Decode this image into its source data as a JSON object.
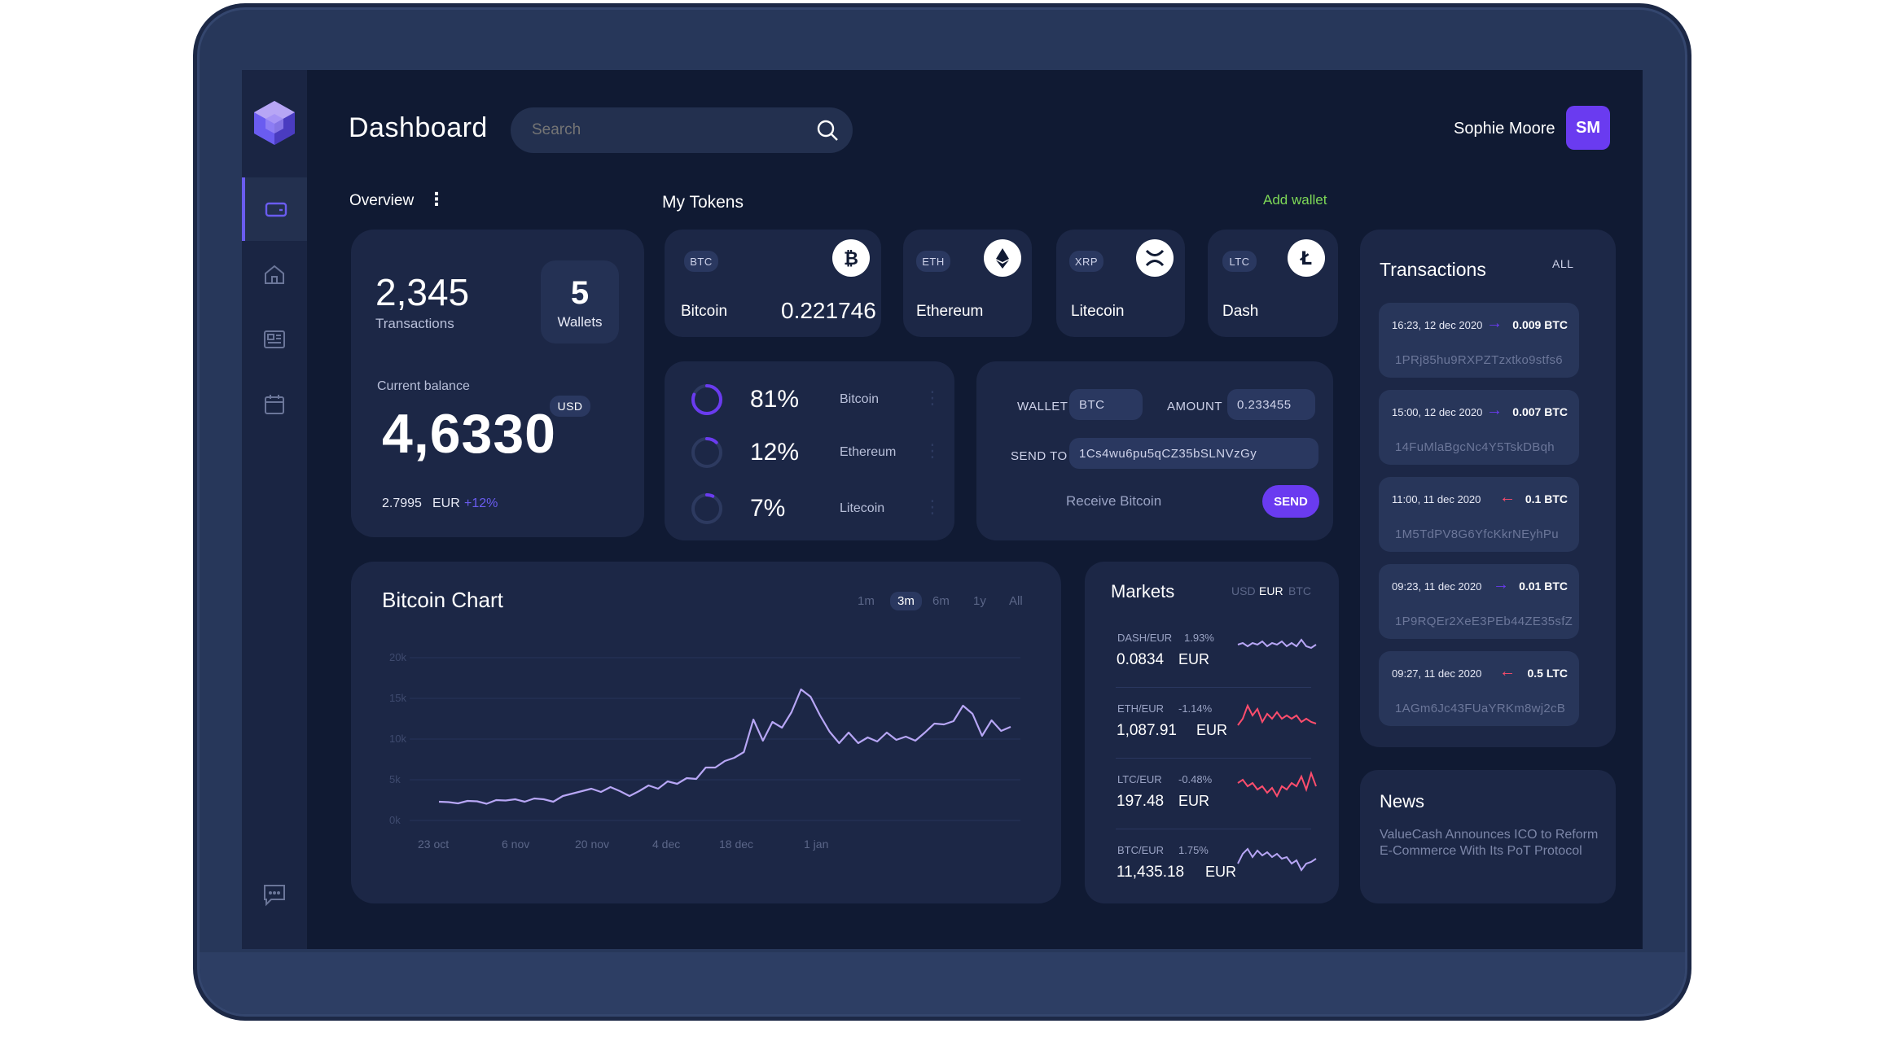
{
  "header": {
    "title": "Dashboard",
    "search_placeholder": "Search",
    "user_name": "Sophie Moore",
    "user_initials": "SM"
  },
  "overview": {
    "label": "Overview",
    "transactions_count": "2,345",
    "transactions_label": "Transactions",
    "wallets_count": "5",
    "wallets_label": "Wallets",
    "balance_label": "Current balance",
    "balance_currency": "USD",
    "balance_value": "4,6330",
    "eur_value": "2.7995",
    "eur_currency": "EUR",
    "change": "+12%"
  },
  "tokens": {
    "label": "My Tokens",
    "add_wallet": "Add wallet",
    "items": [
      {
        "ticker": "BTC",
        "name": "Bitcoin",
        "amount": "0.221746",
        "icon": "bitcoin-icon"
      },
      {
        "ticker": "ETH",
        "name": "Ethereum",
        "amount": "",
        "icon": "ethereum-icon"
      },
      {
        "ticker": "XRP",
        "name": "Litecoin",
        "amount": "",
        "icon": "xrp-icon"
      },
      {
        "ticker": "LTC",
        "name": "Dash",
        "amount": "",
        "icon": "litecoin-icon"
      }
    ]
  },
  "allocation": {
    "items": [
      {
        "percent": "81%",
        "name": "Bitcoin",
        "value": 0.81
      },
      {
        "percent": "12%",
        "name": "Ethereum",
        "value": 0.12
      },
      {
        "percent": "7%",
        "name": "Litecoin",
        "value": 0.07
      }
    ]
  },
  "send": {
    "wallet_label": "WALLET",
    "wallet_value": "BTC",
    "amount_label": "AMOUNT",
    "amount_value": "0.233455",
    "send_to_label": "SEND TO",
    "send_to_value": "1Cs4wu6pu5qCZ35bSLNVzGy",
    "receive_label": "Receive Bitcoin",
    "send_button": "SEND"
  },
  "bitcoin_chart": {
    "title": "Bitcoin Chart",
    "ranges": [
      "1m",
      "3m",
      "6m",
      "1y",
      "All"
    ],
    "active_range": "3m"
  },
  "chart_data": {
    "type": "line",
    "title": "Bitcoin Chart",
    "xlabel": "",
    "ylabel": "",
    "x_ticks": [
      "23 oct",
      "6 nov",
      "20 nov",
      "4 dec",
      "18 dec",
      "1 jan"
    ],
    "y_ticks": [
      "20k",
      "15k",
      "10k",
      "5k",
      "0k"
    ],
    "ylim": [
      0,
      20000
    ],
    "grid": true,
    "series": [
      {
        "values": [
          2300,
          2250,
          2100,
          2400,
          2350,
          2050,
          2500,
          2450,
          2600,
          2300,
          2700,
          2600,
          2300,
          3000,
          3300,
          3600,
          3900,
          3500,
          4100,
          3600,
          3000,
          3600,
          4300,
          3900,
          4800,
          4500,
          5200,
          5100,
          6500,
          6500,
          7300,
          7700,
          8400,
          12400,
          9800,
          12100,
          11400,
          13300,
          16100,
          15200,
          12900,
          10900,
          9500,
          10800,
          9500,
          10200,
          9700,
          10800,
          9900,
          10300,
          9800,
          10800,
          11900,
          11800,
          12200,
          14100,
          13100,
          10400,
          12300,
          11000,
          11500
        ]
      }
    ],
    "line_color": "#b7a6f5"
  },
  "markets": {
    "title": "Markets",
    "currencies": [
      "USD",
      "EUR",
      "BTC"
    ],
    "active_currency": "EUR",
    "items": [
      {
        "pair": "DASH/EUR",
        "change": "1.93%",
        "price": "0.0834",
        "unit": "EUR",
        "color": "#b7a6f5",
        "trend": [
          0.5,
          0.45,
          0.55,
          0.45,
          0.5,
          0.4,
          0.55,
          0.45,
          0.5,
          0.4,
          0.55,
          0.45,
          0.55,
          0.35,
          0.55,
          0.6,
          0.5
        ]
      },
      {
        "pair": "ETH/EUR",
        "change": "-1.14%",
        "price": "1,087.91",
        "unit": "EUR",
        "color": "#ff4d6d",
        "trend": [
          0.8,
          0.6,
          0.2,
          0.5,
          0.3,
          0.7,
          0.45,
          0.6,
          0.4,
          0.6,
          0.5,
          0.6,
          0.5,
          0.7,
          0.6,
          0.7,
          0.75
        ]
      },
      {
        "pair": "LTC/EUR",
        "change": "-0.48%",
        "price": "197.48",
        "unit": "EUR",
        "color": "#ff4d6d",
        "trend": [
          0.4,
          0.3,
          0.5,
          0.4,
          0.6,
          0.5,
          0.7,
          0.55,
          0.8,
          0.5,
          0.6,
          0.4,
          0.5,
          0.2,
          0.6,
          0.1,
          0.5
        ]
      },
      {
        "pair": "BTC/EUR",
        "change": "1.75%",
        "price": "11,435.18",
        "unit": "EUR",
        "color": "#b7a6f5",
        "trend": [
          0.7,
          0.4,
          0.25,
          0.5,
          0.3,
          0.45,
          0.35,
          0.5,
          0.4,
          0.55,
          0.5,
          0.7,
          0.6,
          0.9,
          0.7,
          0.65,
          0.55
        ]
      }
    ]
  },
  "transactions": {
    "title": "Transactions",
    "filter": "ALL",
    "items": [
      {
        "time": "16:23, 12 dec 2020",
        "amount": "0.009 BTC",
        "direction": "out",
        "address": "1PRj85hu9RXPZTzxtko9stfs6"
      },
      {
        "time": "15:00, 12 dec 2020",
        "amount": "0.007 BTC",
        "direction": "out",
        "address": "14FuMlaBgcNc4Y5TskDBqh"
      },
      {
        "time": "11:00, 11 dec 2020",
        "amount": "0.1 BTC",
        "direction": "in",
        "address": "1M5TdPV8G6YfcKkrNEyhPu"
      },
      {
        "time": "09:23, 11 dec 2020",
        "amount": "0.01 BTC",
        "direction": "out",
        "address": "1P9RQEr2XeE3PEb44ZE35sfZ"
      },
      {
        "time": "09:27, 11 dec 2020",
        "amount": "0.5 LTC",
        "direction": "in",
        "address": "1AGm6Jc43FUaYRKm8wj2cB"
      }
    ]
  },
  "news": {
    "title": "News",
    "headline": "ValueCash Announces ICO to Reform E-Commerce With Its PoT Protocol"
  },
  "colors": {
    "accent": "#6a3bf0",
    "green": "#7ed957",
    "red": "#ff4d6d",
    "line": "#b7a6f5"
  }
}
